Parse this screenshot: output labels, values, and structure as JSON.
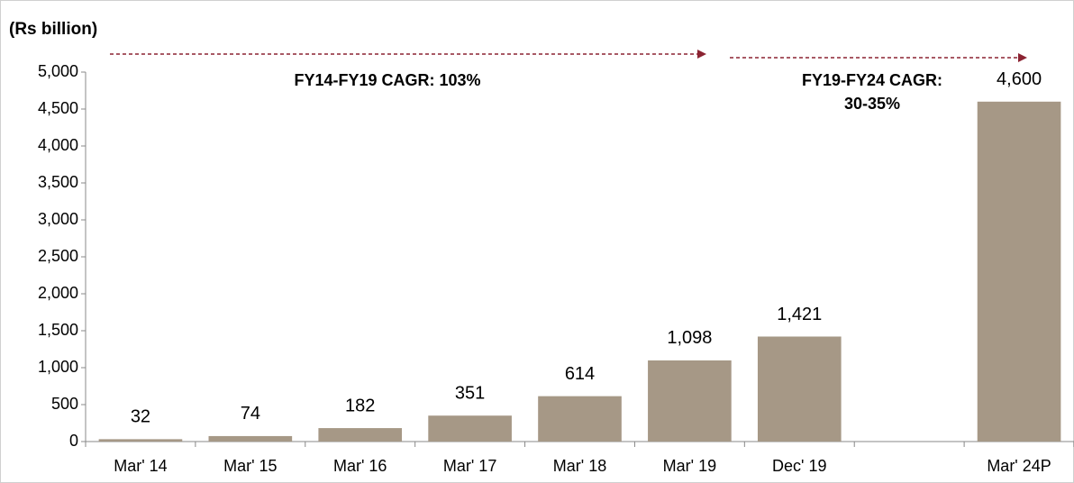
{
  "chart_data": {
    "type": "bar",
    "y_axis_label": "(Rs billion)",
    "annotations": [
      "FY14-FY19 CAGR: 103%",
      [
        "FY19-FY24 CAGR:",
        "30-35%"
      ]
    ],
    "categories": [
      "Mar' 14",
      "Mar' 15",
      "Mar' 16",
      "Mar' 17",
      "Mar' 18",
      "Mar' 19",
      "Dec' 19",
      null,
      "Mar' 24P"
    ],
    "values": [
      32,
      74,
      182,
      351,
      614,
      1098,
      1421,
      null,
      4600
    ],
    "value_labels": [
      "32",
      "74",
      "182",
      "351",
      "614",
      "1,098",
      "1,421",
      null,
      "4,600"
    ],
    "color": "#a69886",
    "ylim": [
      0,
      5000
    ],
    "yticks": [
      0,
      500,
      {
        "value": 1000,
        "label": "1,000"
      },
      {
        "value": 1500,
        "label": "1,500"
      },
      {
        "value": 2000,
        "label": "2,000"
      },
      {
        "value": 2500,
        "label": "2,500"
      },
      {
        "value": 3000,
        "label": "3,000"
      },
      {
        "value": 3500,
        "label": "3,500"
      },
      {
        "value": 4000,
        "label": "4,000"
      },
      {
        "value": 4500,
        "label": "4,500"
      },
      {
        "value": 5000,
        "label": "5,000"
      }
    ],
    "grid": false
  }
}
